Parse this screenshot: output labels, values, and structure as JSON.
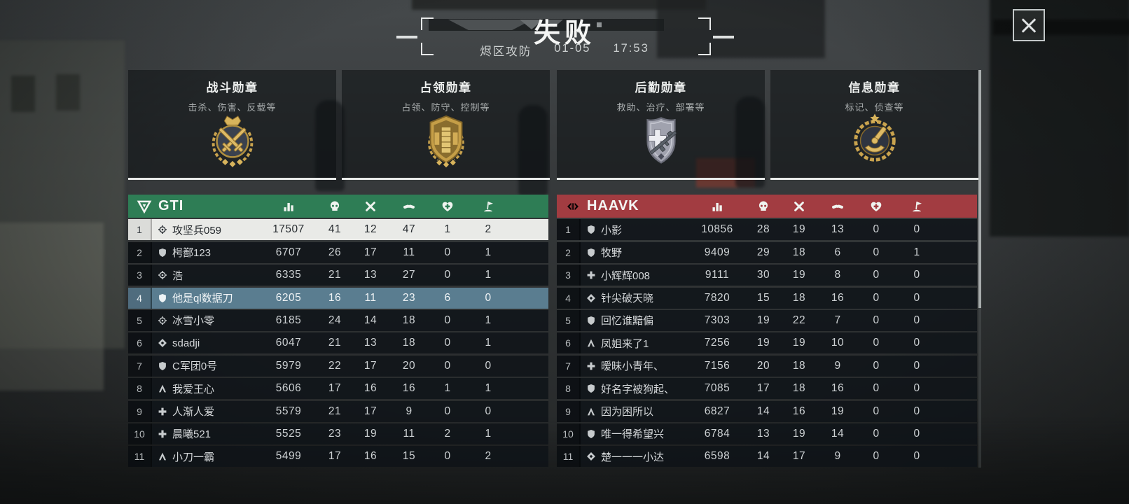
{
  "header": {
    "result": "失败",
    "mode": "烬区攻防",
    "date": "01-05",
    "time": "17:53"
  },
  "medals": [
    {
      "title": "战斗勋章",
      "subtitle": "击杀、伤害、反载等",
      "icon": "combat-medal"
    },
    {
      "title": "占领勋章",
      "subtitle": "占领、防守、控制等",
      "icon": "capture-medal"
    },
    {
      "title": "后勤勋章",
      "subtitle": "救助、治疗、部署等",
      "icon": "logistics-medal"
    },
    {
      "title": "信息勋章",
      "subtitle": "标记、侦查等",
      "icon": "intel-medal"
    }
  ],
  "columns": [
    {
      "key": "score",
      "icon": "stats"
    },
    {
      "key": "kills",
      "icon": "skull"
    },
    {
      "key": "deaths",
      "icon": "x"
    },
    {
      "key": "assists",
      "icon": "handshake"
    },
    {
      "key": "revives",
      "icon": "heartcross"
    },
    {
      "key": "captures",
      "icon": "flag"
    }
  ],
  "colors": {
    "gti_header": "#2E7D55",
    "haavk_header": "#A23C41",
    "mvp_row": "#E9EAE7",
    "self_row": "#5E8294",
    "gold": "#C9A34E"
  },
  "teams": [
    {
      "name": "GTI",
      "logo": "gti",
      "color": "#2E7D55",
      "players": [
        {
          "rank": 1,
          "class": "crosshair",
          "name": "攻坚兵059",
          "score": 17507,
          "kills": 41,
          "deaths": 12,
          "assists": 47,
          "revives": 1,
          "captures": 2,
          "highlight": "mvp"
        },
        {
          "rank": 2,
          "class": "shield",
          "name": "枵鄯123",
          "score": 6707,
          "kills": 26,
          "deaths": 17,
          "assists": 11,
          "revives": 0,
          "captures": 1,
          "highlight": ""
        },
        {
          "rank": 3,
          "class": "crosshair",
          "name": "浩",
          "score": 6335,
          "kills": 21,
          "deaths": 13,
          "assists": 27,
          "revives": 0,
          "captures": 1,
          "highlight": ""
        },
        {
          "rank": 4,
          "class": "shield",
          "name": "他是ql数据刀",
          "score": 6205,
          "kills": 16,
          "deaths": 11,
          "assists": 23,
          "revives": 6,
          "captures": 0,
          "highlight": "self"
        },
        {
          "rank": 5,
          "class": "crosshair",
          "name": "冰雪小零",
          "score": 6185,
          "kills": 24,
          "deaths": 14,
          "assists": 18,
          "revives": 0,
          "captures": 1,
          "highlight": ""
        },
        {
          "rank": 6,
          "class": "diamond",
          "name": "sdadji",
          "score": 6047,
          "kills": 21,
          "deaths": 13,
          "assists": 18,
          "revives": 0,
          "captures": 1,
          "highlight": ""
        },
        {
          "rank": 7,
          "class": "shield",
          "name": "C军团0号",
          "score": 5979,
          "kills": 22,
          "deaths": 17,
          "assists": 20,
          "revives": 0,
          "captures": 0,
          "highlight": ""
        },
        {
          "rank": 8,
          "class": "chevron",
          "name": "我爱王心",
          "score": 5606,
          "kills": 17,
          "deaths": 16,
          "assists": 16,
          "revives": 1,
          "captures": 1,
          "highlight": ""
        },
        {
          "rank": 9,
          "class": "cross",
          "name": "人渐人爱",
          "score": 5579,
          "kills": 21,
          "deaths": 17,
          "assists": 9,
          "revives": 0,
          "captures": 0,
          "highlight": ""
        },
        {
          "rank": 10,
          "class": "cross",
          "name": "晨曦521",
          "score": 5525,
          "kills": 23,
          "deaths": 19,
          "assists": 11,
          "revives": 2,
          "captures": 1,
          "highlight": ""
        },
        {
          "rank": 11,
          "class": "chevron",
          "name": "小刀一霸",
          "score": 5499,
          "kills": 17,
          "deaths": 16,
          "assists": 15,
          "revives": 0,
          "captures": 2,
          "highlight": ""
        }
      ]
    },
    {
      "name": "HAAVK",
      "logo": "haavk",
      "color": "#A23C41",
      "players": [
        {
          "rank": 1,
          "class": "shield",
          "name": "小影",
          "score": 10856,
          "kills": 28,
          "deaths": 19,
          "assists": 13,
          "revives": 0,
          "captures": 0,
          "highlight": ""
        },
        {
          "rank": 2,
          "class": "shield",
          "name": "牧野",
          "score": 9409,
          "kills": 29,
          "deaths": 18,
          "assists": 6,
          "revives": 0,
          "captures": 1,
          "highlight": ""
        },
        {
          "rank": 3,
          "class": "cross",
          "name": "小辉辉008",
          "score": 9111,
          "kills": 30,
          "deaths": 19,
          "assists": 8,
          "revives": 0,
          "captures": 0,
          "highlight": ""
        },
        {
          "rank": 4,
          "class": "diamond",
          "name": "针尖破天晓",
          "score": 7820,
          "kills": 15,
          "deaths": 18,
          "assists": 16,
          "revives": 0,
          "captures": 0,
          "highlight": ""
        },
        {
          "rank": 5,
          "class": "shield",
          "name": "回忆谁黯偏",
          "score": 7303,
          "kills": 19,
          "deaths": 22,
          "assists": 7,
          "revives": 0,
          "captures": 0,
          "highlight": ""
        },
        {
          "rank": 6,
          "class": "chevron",
          "name": "凤姐来了1",
          "score": 7256,
          "kills": 19,
          "deaths": 19,
          "assists": 10,
          "revives": 0,
          "captures": 0,
          "highlight": ""
        },
        {
          "rank": 7,
          "class": "cross",
          "name": "暧昧小青年、",
          "score": 7156,
          "kills": 20,
          "deaths": 18,
          "assists": 9,
          "revives": 0,
          "captures": 0,
          "highlight": ""
        },
        {
          "rank": 8,
          "class": "shield",
          "name": "好名字被狗起、",
          "score": 7085,
          "kills": 17,
          "deaths": 18,
          "assists": 16,
          "revives": 0,
          "captures": 0,
          "highlight": ""
        },
        {
          "rank": 9,
          "class": "chevron",
          "name": "因为困所以",
          "score": 6827,
          "kills": 14,
          "deaths": 16,
          "assists": 19,
          "revives": 0,
          "captures": 0,
          "highlight": ""
        },
        {
          "rank": 10,
          "class": "shield",
          "name": "唯一得希望兴",
          "score": 6784,
          "kills": 13,
          "deaths": 19,
          "assists": 14,
          "revives": 0,
          "captures": 0,
          "highlight": ""
        },
        {
          "rank": 11,
          "class": "diamond",
          "name": "楚一一一小达",
          "score": 6598,
          "kills": 14,
          "deaths": 17,
          "assists": 9,
          "revives": 0,
          "captures": 0,
          "highlight": ""
        }
      ]
    }
  ]
}
